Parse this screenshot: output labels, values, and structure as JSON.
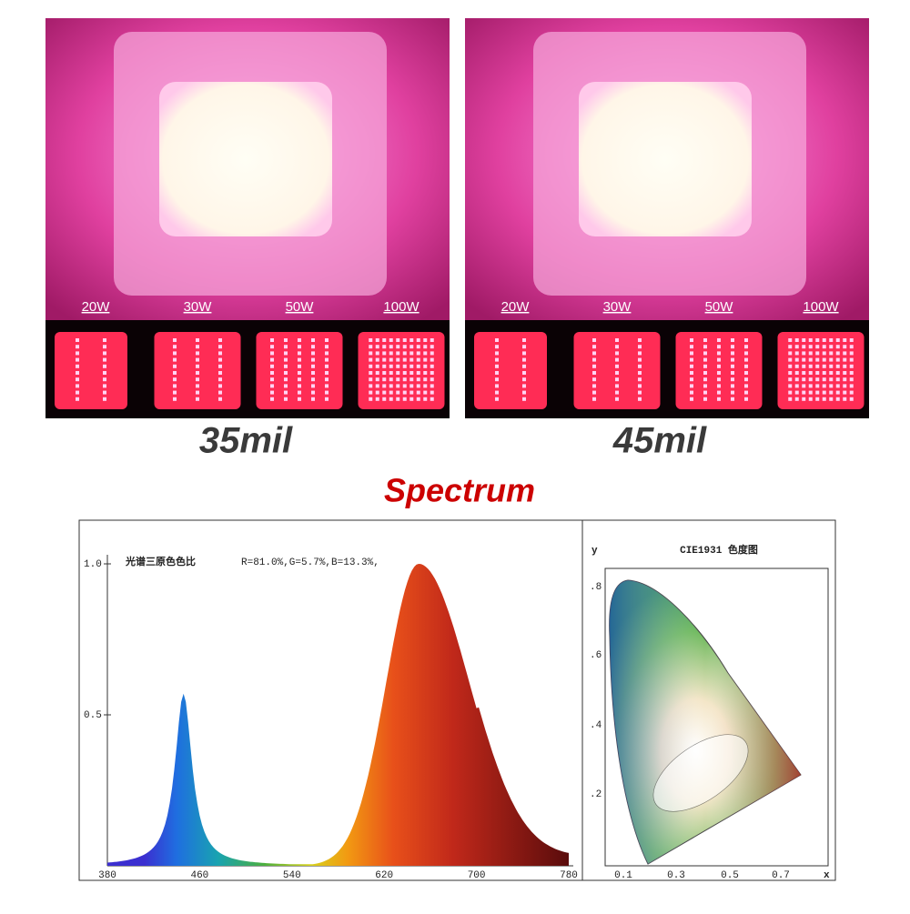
{
  "panels": [
    {
      "chip_labels": [
        "20W",
        "30W",
        "50W",
        "100W"
      ],
      "caption": "35mil"
    },
    {
      "chip_labels": [
        "20W",
        "30W",
        "50W",
        "100W"
      ],
      "caption": "45mil"
    }
  ],
  "title": "Spectrum",
  "spectrum": {
    "heading": "光谱三原色色比",
    "ratio": "R=81.0%,G=5.7%,B=13.3%,",
    "y_labels": [
      "1.0",
      "0.5"
    ],
    "x_labels": [
      "380",
      "460",
      "540",
      "620",
      "700",
      "780"
    ]
  },
  "cie": {
    "title": "CIE1931 色度图",
    "y_axis": "y",
    "x_axis": "x",
    "y_labels": [
      ".8",
      ".6",
      ".4",
      ".2"
    ],
    "x_labels": [
      "0.1",
      "0.3",
      "0.5",
      "0.7"
    ]
  }
}
